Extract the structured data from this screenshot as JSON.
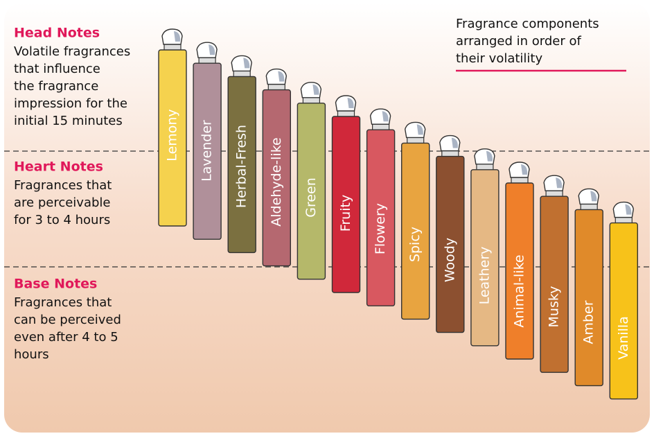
{
  "sections": [
    {
      "title": "Head Notes",
      "lines": [
        "Volatile fragrances",
        "that influence",
        "the fragrance",
        "impression for the",
        "initial 15 minutes"
      ]
    },
    {
      "title": "Heart Notes",
      "lines": [
        "Fragrances that",
        "are perceivable",
        "for 3 to 4 hours"
      ]
    },
    {
      "title": "Base Notes",
      "lines": [
        "Fragrances that",
        "can be perceived",
        "even after 4 to 5",
        "hours"
      ]
    }
  ],
  "note": [
    "Fragrance components",
    "arranged in order of",
    "their volatility"
  ],
  "bottles": [
    {
      "label": "Lemony",
      "color": "#f5d24e"
    },
    {
      "label": "Lavender",
      "color": "#b0909a"
    },
    {
      "label": "Herbal-Fresh",
      "color": "#7b7040"
    },
    {
      "label": "Aldehyde-like",
      "color": "#b56870"
    },
    {
      "label": "Green",
      "color": "#b5b86a"
    },
    {
      "label": "Fruity",
      "color": "#d0283a"
    },
    {
      "label": "Flowery",
      "color": "#d85860"
    },
    {
      "label": "Spicy",
      "color": "#e8a440"
    },
    {
      "label": "Woody",
      "color": "#8c5030"
    },
    {
      "label": "Leathery",
      "color": "#e5b884"
    },
    {
      "label": "Animal-like",
      "color": "#ef7f2a"
    },
    {
      "label": "Musky",
      "color": "#c07030"
    },
    {
      "label": "Amber",
      "color": "#e08a2a"
    },
    {
      "label": "Vanilla",
      "color": "#f7c21a"
    }
  ]
}
